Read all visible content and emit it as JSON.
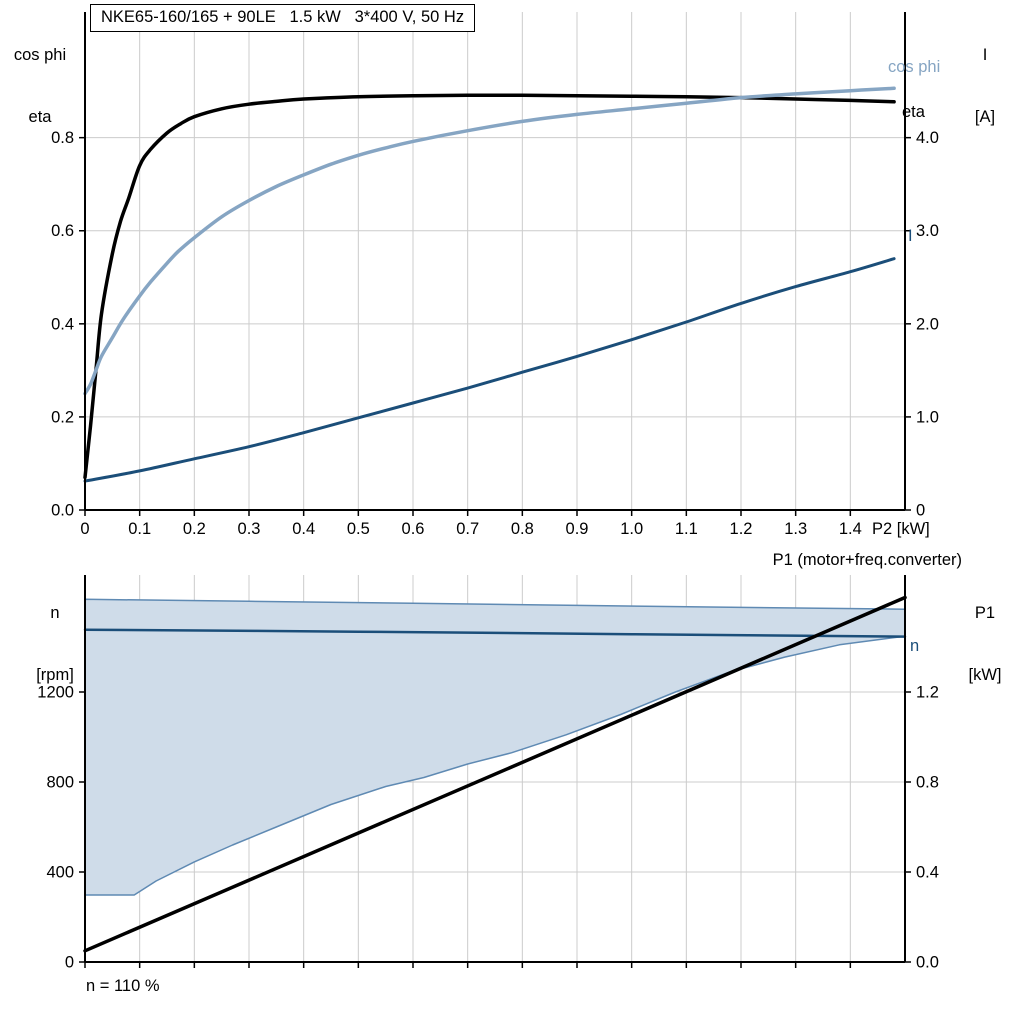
{
  "colors": {
    "steel": "#86a5c3",
    "navy": "#1b4e79",
    "area_fill": "#cfdce9",
    "area_stroke": "#5f8ab3",
    "grid": "#cccccc",
    "axis": "#000000"
  },
  "top_chart": {
    "title_box": "NKE65-160/165 + 90LE   1.5 kW   3*400 V, 50 Hz",
    "axis_left": {
      "line1": "cos phi",
      "line2": "eta"
    },
    "axis_right": {
      "line1": "I",
      "line2": "[A]"
    },
    "x_axis_title": "P2 [kW]",
    "curve_labels": {
      "cos_phi": "cos phi",
      "eta": "eta",
      "current": "I"
    }
  },
  "bottom_chart": {
    "axis_left": {
      "line1": "n",
      "line2": "[rpm]"
    },
    "axis_right": {
      "line1": "P1",
      "line2": "[kW]"
    },
    "top_right_label": "P1 (motor+freq.converter)",
    "curve_labels": {
      "n": "n"
    },
    "note": "n = 110 %"
  },
  "chart_data": [
    {
      "type": "line",
      "title": "NKE65-160/165 + 90LE   1.5 kW   3*400 V, 50 Hz",
      "xlabel": "P2 [kW]",
      "ylabel_left": "cos phi / eta",
      "ylabel_right": "I [A]",
      "xlim": [
        0,
        1.5
      ],
      "ylim_left": [
        0,
        1.07
      ],
      "ylim_right": [
        0,
        5.35
      ],
      "grid": true,
      "x_ticks": {
        "values": [
          0,
          0.1,
          0.2,
          0.3,
          0.4,
          0.5,
          0.6,
          0.7,
          0.8,
          0.9,
          1.0,
          1.1,
          1.2,
          1.3,
          1.4
        ],
        "labels": [
          "0",
          "0.1",
          "0.2",
          "0.3",
          "0.4",
          "0.5",
          "0.6",
          "0.7",
          "0.8",
          "0.9",
          "1.0",
          "1.1",
          "1.2",
          "1.3",
          "1.4"
        ]
      },
      "y_ticks_left": {
        "values": [
          0,
          0.2,
          0.4,
          0.6,
          0.8
        ],
        "labels": [
          "0.0",
          "0.2",
          "0.4",
          "0.6",
          "0.8"
        ]
      },
      "y_ticks_right": {
        "values": [
          0,
          1,
          2,
          3,
          4
        ],
        "labels": [
          "0",
          "1.0",
          "2.0",
          "3.0",
          "4.0"
        ]
      },
      "series": [
        {
          "name": "eta",
          "axis": "left",
          "color": "#000000",
          "width": 3.5,
          "points": [
            [
              0,
              0.07
            ],
            [
              0.01,
              0.18
            ],
            [
              0.02,
              0.3
            ],
            [
              0.03,
              0.42
            ],
            [
              0.05,
              0.55
            ],
            [
              0.065,
              0.62
            ],
            [
              0.08,
              0.67
            ],
            [
              0.1,
              0.74
            ],
            [
              0.12,
              0.775
            ],
            [
              0.15,
              0.81
            ],
            [
              0.175,
              0.83
            ],
            [
              0.2,
              0.845
            ],
            [
              0.25,
              0.862
            ],
            [
              0.3,
              0.872
            ],
            [
              0.35,
              0.878
            ],
            [
              0.4,
              0.883
            ],
            [
              0.5,
              0.888
            ],
            [
              0.6,
              0.89
            ],
            [
              0.7,
              0.891
            ],
            [
              0.8,
              0.891
            ],
            [
              0.9,
              0.89
            ],
            [
              1.0,
              0.889
            ],
            [
              1.1,
              0.888
            ],
            [
              1.2,
              0.886
            ],
            [
              1.3,
              0.883
            ],
            [
              1.4,
              0.88
            ],
            [
              1.48,
              0.877
            ]
          ]
        },
        {
          "name": "cos phi",
          "axis": "left",
          "color": "#86a5c3",
          "width": 3.5,
          "points": [
            [
              0,
              0.25
            ],
            [
              0.01,
              0.27
            ],
            [
              0.02,
              0.3
            ],
            [
              0.03,
              0.33
            ],
            [
              0.05,
              0.37
            ],
            [
              0.07,
              0.41
            ],
            [
              0.1,
              0.46
            ],
            [
              0.12,
              0.49
            ],
            [
              0.15,
              0.53
            ],
            [
              0.17,
              0.555
            ],
            [
              0.2,
              0.585
            ],
            [
              0.25,
              0.63
            ],
            [
              0.3,
              0.665
            ],
            [
              0.35,
              0.695
            ],
            [
              0.4,
              0.72
            ],
            [
              0.45,
              0.743
            ],
            [
              0.5,
              0.762
            ],
            [
              0.55,
              0.778
            ],
            [
              0.6,
              0.792
            ],
            [
              0.7,
              0.815
            ],
            [
              0.8,
              0.835
            ],
            [
              0.9,
              0.85
            ],
            [
              1.0,
              0.862
            ],
            [
              1.1,
              0.874
            ],
            [
              1.2,
              0.886
            ],
            [
              1.3,
              0.894
            ],
            [
              1.4,
              0.901
            ],
            [
              1.48,
              0.906
            ]
          ]
        },
        {
          "name": "I",
          "axis": "right",
          "color": "#1b4e79",
          "width": 3,
          "points": [
            [
              0,
              0.31
            ],
            [
              0.1,
              0.42
            ],
            [
              0.2,
              0.55
            ],
            [
              0.3,
              0.68
            ],
            [
              0.4,
              0.83
            ],
            [
              0.5,
              0.99
            ],
            [
              0.6,
              1.15
            ],
            [
              0.7,
              1.31
            ],
            [
              0.8,
              1.48
            ],
            [
              0.9,
              1.65
            ],
            [
              1.0,
              1.83
            ],
            [
              1.1,
              2.02
            ],
            [
              1.2,
              2.22
            ],
            [
              1.3,
              2.4
            ],
            [
              1.4,
              2.56
            ],
            [
              1.48,
              2.7
            ]
          ]
        }
      ]
    },
    {
      "type": "line",
      "title": "",
      "xlabel": "",
      "ylabel_left": "n [rpm]",
      "ylabel_right": "P1 [kW]",
      "xlim": [
        0,
        1.5
      ],
      "ylim_left": [
        0,
        1720
      ],
      "ylim_right": [
        0,
        1.72
      ],
      "grid": true,
      "x_ticks": {
        "values": [
          0,
          0.1,
          0.2,
          0.3,
          0.4,
          0.5,
          0.6,
          0.7,
          0.8,
          0.9,
          1.0,
          1.1,
          1.2,
          1.3,
          1.4
        ],
        "labels": []
      },
      "y_ticks_left": {
        "values": [
          0,
          400,
          800,
          1200
        ],
        "labels": [
          "0",
          "400",
          "800",
          "1200"
        ]
      },
      "y_ticks_right": {
        "values": [
          0,
          0.4,
          0.8,
          1.2
        ],
        "labels": [
          "0.0",
          "0.4",
          "0.8",
          "1.2"
        ]
      },
      "regions": [
        {
          "name": "speed-operating-range",
          "axis": "left",
          "fill": "#cfdce9",
          "stroke": "#5f8ab3",
          "stroke_width": 1.5,
          "upper": [
            [
              0,
              1612
            ],
            [
              0.3,
              1603
            ],
            [
              0.6,
              1594
            ],
            [
              0.9,
              1585
            ],
            [
              1.2,
              1576
            ],
            [
              1.5,
              1568
            ]
          ],
          "lower": [
            [
              0,
              298
            ],
            [
              0.09,
              298
            ],
            [
              0.13,
              360
            ],
            [
              0.2,
              445
            ],
            [
              0.27,
              520
            ],
            [
              0.35,
              600
            ],
            [
              0.45,
              700
            ],
            [
              0.55,
              780
            ],
            [
              0.62,
              820
            ],
            [
              0.7,
              880
            ],
            [
              0.78,
              930
            ],
            [
              0.88,
              1010
            ],
            [
              0.98,
              1100
            ],
            [
              1.08,
              1200
            ],
            [
              1.18,
              1290
            ],
            [
              1.28,
              1355
            ],
            [
              1.38,
              1410
            ],
            [
              1.5,
              1448
            ]
          ]
        }
      ],
      "series": [
        {
          "name": "n",
          "axis": "left",
          "color": "#1b4e79",
          "width": 2.5,
          "points": [
            [
              0,
              1477
            ],
            [
              0.5,
              1468
            ],
            [
              1.0,
              1457
            ],
            [
              1.5,
              1446
            ]
          ]
        },
        {
          "name": "P1 (motor+freq.converter)",
          "axis": "right",
          "color": "#000000",
          "width": 3.5,
          "points": [
            [
              0,
              0.05
            ],
            [
              1.5,
              1.62
            ]
          ]
        }
      ]
    }
  ]
}
